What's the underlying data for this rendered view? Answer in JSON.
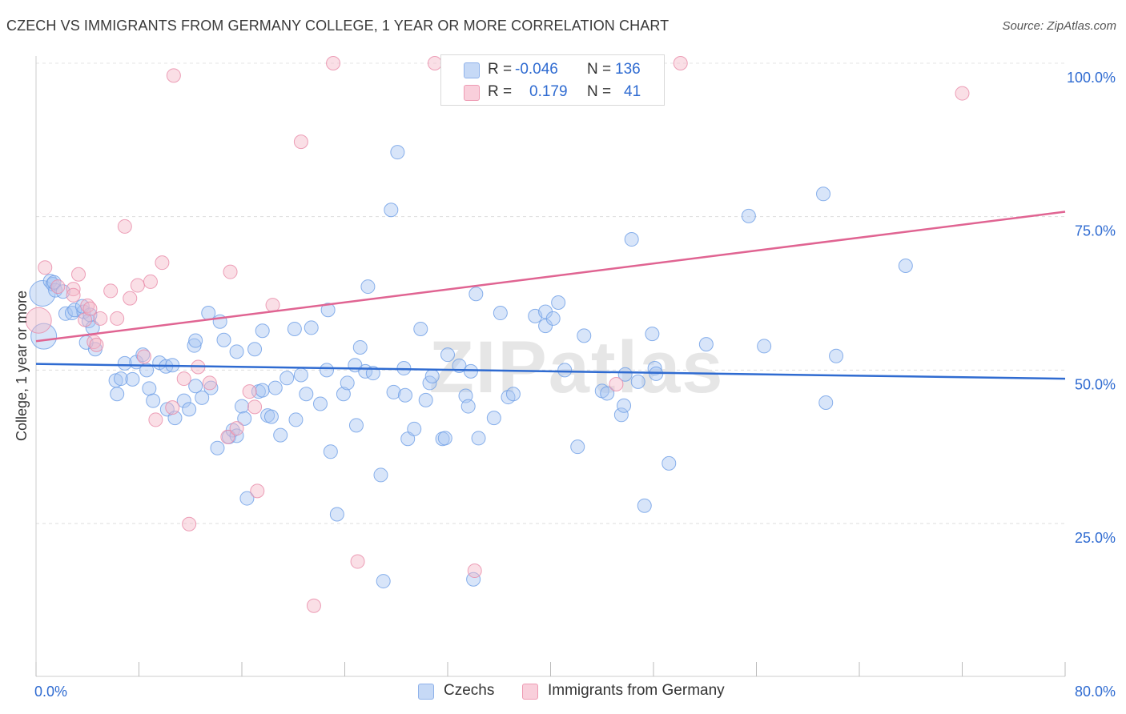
{
  "header": {
    "title": "CZECH VS IMMIGRANTS FROM GERMANY COLLEGE, 1 YEAR OR MORE CORRELATION CHART",
    "source": "Source: ZipAtlas.com"
  },
  "watermark": "ZIPatlas",
  "legend": {
    "rows": [
      {
        "r_label": "R =",
        "r_value": "-0.046",
        "n_label": "N =",
        "n_value": "136",
        "color": "#a9c6f2"
      },
      {
        "r_label": "R =",
        "r_value": "0.179",
        "n_label": "N =",
        "n_value": "41",
        "color": "#f5b7c8"
      }
    ]
  },
  "bottom_legend": [
    {
      "label": "Czechs",
      "color": "#a9c6f2"
    },
    {
      "label": "Immigrants from Germany",
      "color": "#f5b7c8"
    }
  ],
  "chart_data": {
    "type": "scatter",
    "ylabel": "College, 1 year or more",
    "xlim": [
      0,
      80
    ],
    "ylim": [
      0,
      105
    ],
    "x_tick_labels": [
      {
        "value": 0,
        "label": "0.0%"
      },
      {
        "value": 80,
        "label": "80.0%"
      }
    ],
    "y_tick_labels": [
      {
        "value": 25,
        "label": "25.0%"
      },
      {
        "value": 50,
        "label": "50.0%"
      },
      {
        "value": 75,
        "label": "75.0%"
      },
      {
        "value": 100,
        "label": "100.0%"
      }
    ],
    "x_minor_ticks": [
      0,
      8,
      16,
      24,
      32,
      40,
      48,
      56,
      64,
      72,
      80
    ],
    "grid": true,
    "series": [
      {
        "name": "Czechs",
        "color": "#a9c6f2",
        "stroke": "#6d9ee6",
        "trend": {
          "x": [
            0,
            80
          ],
          "y": [
            51.0,
            48.6
          ],
          "color": "#2f6bd1"
        },
        "points": [
          [
            0.5,
            62.5
          ],
          [
            0.6,
            55.5
          ],
          [
            1.1,
            64.5
          ],
          [
            1.3,
            64.0
          ],
          [
            1.5,
            63.0
          ],
          [
            1.4,
            64.3
          ],
          [
            2.1,
            62.8
          ],
          [
            2.3,
            59.2
          ],
          [
            2.8,
            59.3
          ],
          [
            3.0,
            59.8
          ],
          [
            3.7,
            59.5
          ],
          [
            3.6,
            60.4
          ],
          [
            4.1,
            58.0
          ],
          [
            4.2,
            59.0
          ],
          [
            4.4,
            56.9
          ],
          [
            4.6,
            53.4
          ],
          [
            3.9,
            54.5
          ],
          [
            6.2,
            48.3
          ],
          [
            6.3,
            46.1
          ],
          [
            6.6,
            48.6
          ],
          [
            6.9,
            51.1
          ],
          [
            7.5,
            48.5
          ],
          [
            7.8,
            51.3
          ],
          [
            8.3,
            52.5
          ],
          [
            8.6,
            50.0
          ],
          [
            8.8,
            47.0
          ],
          [
            9.1,
            45.0
          ],
          [
            9.6,
            51.2
          ],
          [
            10.1,
            50.6
          ],
          [
            10.2,
            43.6
          ],
          [
            10.6,
            50.8
          ],
          [
            10.8,
            42.2
          ],
          [
            11.5,
            45.0
          ],
          [
            11.9,
            43.6
          ],
          [
            12.3,
            54.0
          ],
          [
            12.4,
            54.8
          ],
          [
            12.4,
            47.4
          ],
          [
            12.9,
            45.5
          ],
          [
            13.4,
            59.3
          ],
          [
            13.6,
            47.1
          ],
          [
            14.1,
            37.3
          ],
          [
            14.3,
            57.9
          ],
          [
            14.6,
            54.9
          ],
          [
            15.0,
            39.1
          ],
          [
            15.3,
            40.2
          ],
          [
            15.6,
            53.0
          ],
          [
            15.6,
            39.3
          ],
          [
            16.0,
            44.1
          ],
          [
            16.2,
            42.1
          ],
          [
            16.4,
            29.1
          ],
          [
            17.0,
            53.4
          ],
          [
            17.3,
            46.5
          ],
          [
            17.6,
            56.4
          ],
          [
            17.6,
            46.7
          ],
          [
            18.0,
            42.6
          ],
          [
            18.3,
            42.4
          ],
          [
            18.6,
            47.1
          ],
          [
            19.0,
            39.4
          ],
          [
            19.5,
            48.7
          ],
          [
            20.1,
            56.7
          ],
          [
            20.2,
            41.9
          ],
          [
            20.6,
            49.2
          ],
          [
            21.0,
            46.1
          ],
          [
            21.4,
            56.9
          ],
          [
            22.1,
            44.5
          ],
          [
            22.6,
            50.0
          ],
          [
            22.7,
            59.8
          ],
          [
            22.9,
            36.7
          ],
          [
            23.9,
            46.1
          ],
          [
            23.4,
            26.5
          ],
          [
            24.2,
            47.9
          ],
          [
            24.8,
            50.8
          ],
          [
            24.9,
            41.0
          ],
          [
            25.2,
            53.7
          ],
          [
            25.6,
            49.8
          ],
          [
            25.8,
            63.6
          ],
          [
            26.2,
            49.5
          ],
          [
            26.8,
            32.9
          ],
          [
            27.0,
            15.6
          ],
          [
            27.6,
            76.1
          ],
          [
            27.8,
            46.4
          ],
          [
            28.1,
            85.5
          ],
          [
            28.6,
            50.3
          ],
          [
            28.7,
            45.9
          ],
          [
            28.9,
            38.8
          ],
          [
            29.4,
            40.4
          ],
          [
            29.9,
            56.7
          ],
          [
            30.3,
            45.1
          ],
          [
            30.6,
            47.9
          ],
          [
            30.8,
            49.0
          ],
          [
            31.6,
            38.8
          ],
          [
            31.8,
            38.9
          ],
          [
            32.0,
            52.5
          ],
          [
            32.9,
            50.7
          ],
          [
            33.4,
            45.8
          ],
          [
            33.6,
            44.1
          ],
          [
            33.8,
            49.8
          ],
          [
            34.2,
            62.4
          ],
          [
            34.4,
            38.9
          ],
          [
            34.0,
            15.9
          ],
          [
            35.6,
            42.2
          ],
          [
            36.1,
            59.3
          ],
          [
            36.7,
            45.6
          ],
          [
            37.1,
            46.1
          ],
          [
            38.8,
            58.8
          ],
          [
            39.6,
            59.5
          ],
          [
            39.6,
            57.2
          ],
          [
            40.2,
            58.4
          ],
          [
            40.6,
            61.0
          ],
          [
            41.1,
            50.0
          ],
          [
            42.1,
            37.5
          ],
          [
            42.6,
            55.6
          ],
          [
            44.0,
            46.6
          ],
          [
            44.4,
            46.2
          ],
          [
            45.5,
            42.7
          ],
          [
            45.7,
            44.2
          ],
          [
            45.8,
            49.3
          ],
          [
            46.3,
            71.3
          ],
          [
            46.8,
            48.1
          ],
          [
            47.3,
            27.9
          ],
          [
            47.9,
            55.9
          ],
          [
            48.1,
            50.3
          ],
          [
            48.2,
            49.4
          ],
          [
            49.2,
            34.8
          ],
          [
            52.1,
            54.2
          ],
          [
            55.4,
            75.1
          ],
          [
            56.6,
            53.9
          ],
          [
            61.2,
            78.7
          ],
          [
            61.4,
            44.7
          ],
          [
            62.2,
            52.3
          ],
          [
            67.6,
            67.0
          ]
        ]
      },
      {
        "name": "Immigrants from Germany",
        "color": "#f5b7c8",
        "stroke": "#e98aa7",
        "trend": {
          "x": [
            0,
            80
          ],
          "y": [
            54.7,
            75.8
          ],
          "color": "#e06492"
        },
        "points": [
          [
            0.2,
            58.1
          ],
          [
            0.7,
            66.7
          ],
          [
            1.7,
            63.6
          ],
          [
            2.9,
            63.2
          ],
          [
            2.9,
            62.2
          ],
          [
            3.3,
            65.6
          ],
          [
            3.8,
            58.2
          ],
          [
            4.0,
            60.5
          ],
          [
            4.2,
            60.0
          ],
          [
            4.5,
            54.6
          ],
          [
            4.7,
            54.1
          ],
          [
            5.0,
            58.4
          ],
          [
            5.8,
            62.9
          ],
          [
            6.3,
            58.4
          ],
          [
            6.9,
            73.4
          ],
          [
            7.3,
            61.7
          ],
          [
            7.9,
            63.8
          ],
          [
            8.4,
            52.2
          ],
          [
            8.9,
            64.4
          ],
          [
            9.3,
            41.9
          ],
          [
            9.8,
            67.5
          ],
          [
            10.6,
            43.9
          ],
          [
            10.7,
            98.0
          ],
          [
            11.5,
            48.6
          ],
          [
            11.9,
            24.9
          ],
          [
            12.6,
            50.5
          ],
          [
            13.5,
            47.9
          ],
          [
            14.9,
            39.1
          ],
          [
            15.1,
            66.0
          ],
          [
            15.6,
            40.5
          ],
          [
            16.6,
            46.5
          ],
          [
            17.0,
            44.0
          ],
          [
            17.2,
            30.3
          ],
          [
            18.4,
            60.6
          ],
          [
            20.6,
            87.2
          ],
          [
            21.6,
            11.6
          ],
          [
            23.1,
            100.0
          ],
          [
            25.0,
            18.8
          ],
          [
            31.0,
            100.0
          ],
          [
            34.1,
            17.3
          ],
          [
            45.1,
            47.7
          ],
          [
            50.1,
            100.0
          ],
          [
            72.0,
            95.1
          ]
        ]
      }
    ]
  }
}
